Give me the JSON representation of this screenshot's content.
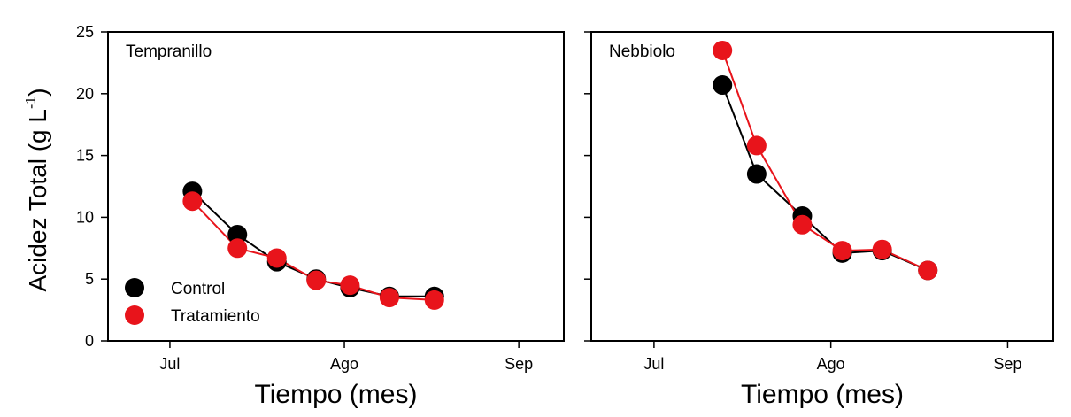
{
  "chart_data": [
    {
      "type": "line",
      "title": "Tempranillo",
      "xlabel": "Tiempo (mes)",
      "ylabel": "Acidez Total (g L",
      "ylabel_sup": "-1",
      "ylabel_close": ")",
      "x_ticks": [
        {
          "date": "2016-07-01",
          "label": "Jul"
        },
        {
          "date": "2016-08-01",
          "label": "Ago"
        },
        {
          "date": "2016-09-01",
          "label": "Sep"
        }
      ],
      "xlim": [
        "2016-06-20",
        "2016-09-09"
      ],
      "ylim": [
        0,
        25
      ],
      "y_ticks": [
        0,
        5,
        10,
        15,
        20,
        25
      ],
      "legend_position": "lower-left",
      "series": [
        {
          "name": "Control",
          "color": "#000000",
          "x": [
            "2016-07-05",
            "2016-07-13",
            "2016-07-20",
            "2016-07-27",
            "2016-08-02",
            "2016-08-09",
            "2016-08-17"
          ],
          "y": [
            12.1,
            8.6,
            6.4,
            5.0,
            4.3,
            3.6,
            3.6
          ]
        },
        {
          "name": "Tratamiento",
          "color": "#e8141b",
          "x": [
            "2016-07-05",
            "2016-07-13",
            "2016-07-20",
            "2016-07-27",
            "2016-08-02",
            "2016-08-09",
            "2016-08-17"
          ],
          "y": [
            11.3,
            7.5,
            6.7,
            4.9,
            4.5,
            3.5,
            3.3
          ]
        }
      ]
    },
    {
      "type": "line",
      "title": "Nebbiolo",
      "xlabel": "Tiempo (mes)",
      "x_ticks": [
        {
          "date": "2016-07-01",
          "label": "Jul"
        },
        {
          "date": "2016-08-01",
          "label": "Ago"
        },
        {
          "date": "2016-09-01",
          "label": "Sep"
        }
      ],
      "xlim": [
        "2016-06-20",
        "2016-09-09"
      ],
      "ylim": [
        0,
        25
      ],
      "y_ticks": [
        0,
        5,
        10,
        15,
        20,
        25
      ],
      "series": [
        {
          "name": "Control",
          "color": "#000000",
          "x": [
            "2016-07-13",
            "2016-07-19",
            "2016-07-27",
            "2016-08-03",
            "2016-08-10",
            "2016-08-18"
          ],
          "y": [
            20.7,
            13.5,
            10.1,
            7.1,
            7.3,
            5.7
          ]
        },
        {
          "name": "Tratamiento",
          "color": "#e8141b",
          "x": [
            "2016-07-13",
            "2016-07-19",
            "2016-07-27",
            "2016-08-03",
            "2016-08-10",
            "2016-08-18"
          ],
          "y": [
            23.5,
            15.8,
            9.4,
            7.3,
            7.4,
            5.7
          ]
        }
      ]
    }
  ]
}
